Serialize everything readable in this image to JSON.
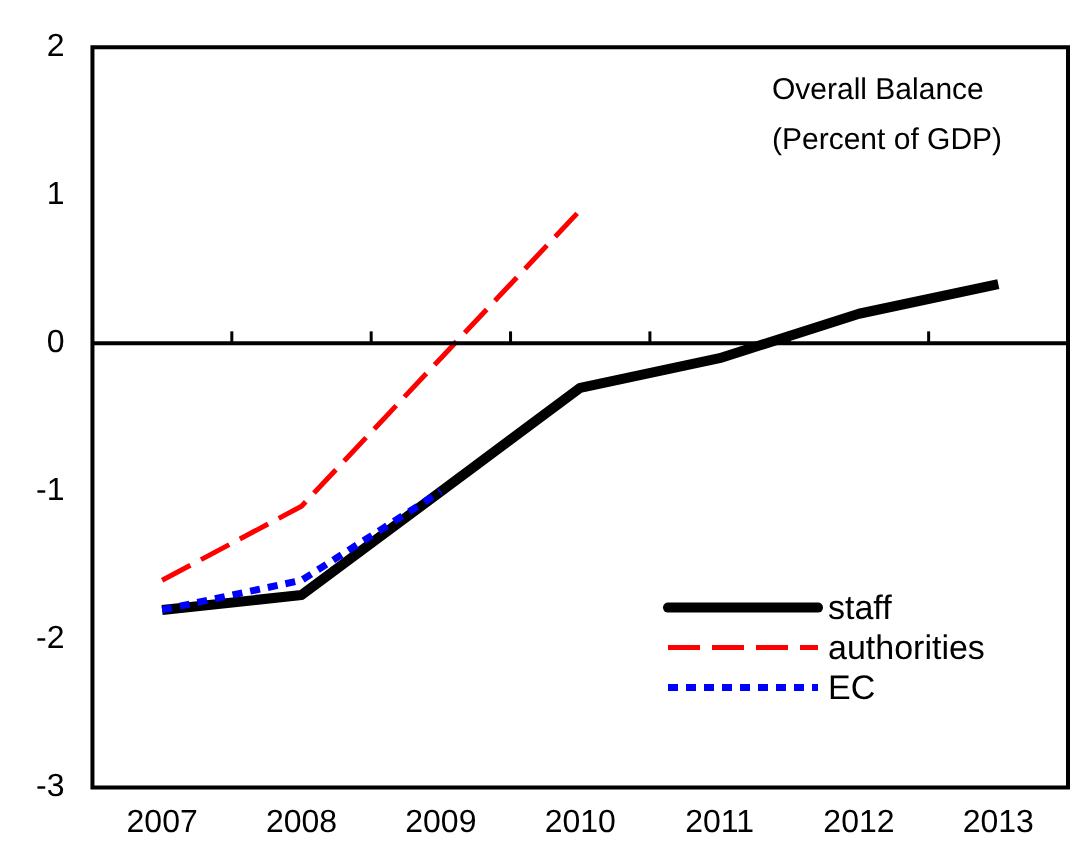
{
  "chart_data": {
    "type": "line",
    "categories": [
      "2007",
      "2008",
      "2009",
      "2010",
      "2011",
      "2012",
      "2013"
    ],
    "series": [
      {
        "name": "staff",
        "color": "#000000",
        "line_style": "solid",
        "values": [
          -1.8,
          -1.7,
          -1.0,
          -0.3,
          -0.1,
          0.2,
          0.4
        ]
      },
      {
        "name": "authorities",
        "color": "#ff0000",
        "line_style": "dashed",
        "values": [
          -1.6,
          -1.1,
          -0.1,
          0.9,
          null,
          null,
          null
        ]
      },
      {
        "name": "EC",
        "color": "#0000ff",
        "line_style": "dotted",
        "values": [
          -1.8,
          -1.6,
          -1.0,
          null,
          null,
          null,
          null
        ]
      }
    ],
    "ylim": [
      -3,
      2
    ],
    "yticks": [
      -3,
      -2,
      -1,
      0,
      1,
      2
    ],
    "grid": false,
    "legend": "bottom right",
    "marker": "none",
    "ref_lines": [
      {
        "axis": "y",
        "value": 0
      }
    ],
    "annotations": [
      "Overall Balance",
      "(Percent of GDP)"
    ]
  }
}
